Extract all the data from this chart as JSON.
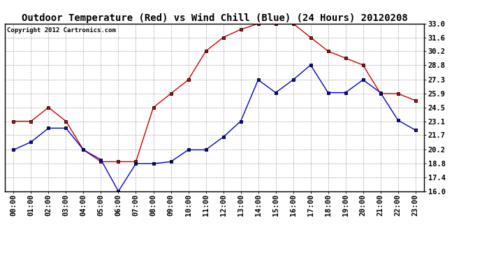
{
  "title": "Outdoor Temperature (Red) vs Wind Chill (Blue) (24 Hours) 20120208",
  "copyright": "Copyright 2012 Cartronics.com",
  "hours": [
    "00:00",
    "01:00",
    "02:00",
    "03:00",
    "04:00",
    "05:00",
    "06:00",
    "07:00",
    "08:00",
    "09:00",
    "10:00",
    "11:00",
    "12:00",
    "13:00",
    "14:00",
    "15:00",
    "16:00",
    "17:00",
    "18:00",
    "19:00",
    "20:00",
    "21:00",
    "22:00",
    "23:00"
  ],
  "red_temp": [
    23.1,
    23.1,
    24.5,
    23.1,
    20.2,
    19.0,
    19.0,
    19.0,
    24.5,
    25.9,
    27.3,
    30.2,
    31.6,
    32.4,
    33.0,
    33.0,
    33.0,
    31.6,
    30.2,
    29.5,
    28.8,
    25.9,
    25.9,
    25.2
  ],
  "blue_temp": [
    20.2,
    21.0,
    22.4,
    22.4,
    20.2,
    19.2,
    16.0,
    18.8,
    18.8,
    19.0,
    20.2,
    20.2,
    21.5,
    23.1,
    27.3,
    26.0,
    27.3,
    28.8,
    26.0,
    26.0,
    27.3,
    26.0,
    23.2,
    22.2
  ],
  "y_ticks": [
    16.0,
    17.4,
    18.8,
    20.2,
    21.7,
    23.1,
    24.5,
    25.9,
    27.3,
    28.8,
    30.2,
    31.6,
    33.0
  ],
  "ymin": 16.0,
  "ymax": 33.0,
  "red_color": "#cc0000",
  "blue_color": "#0000cc",
  "bg_color": "#ffffff",
  "grid_color": "#aaaaaa",
  "title_fontsize": 10,
  "copyright_fontsize": 6.5,
  "tick_fontsize": 7.5
}
